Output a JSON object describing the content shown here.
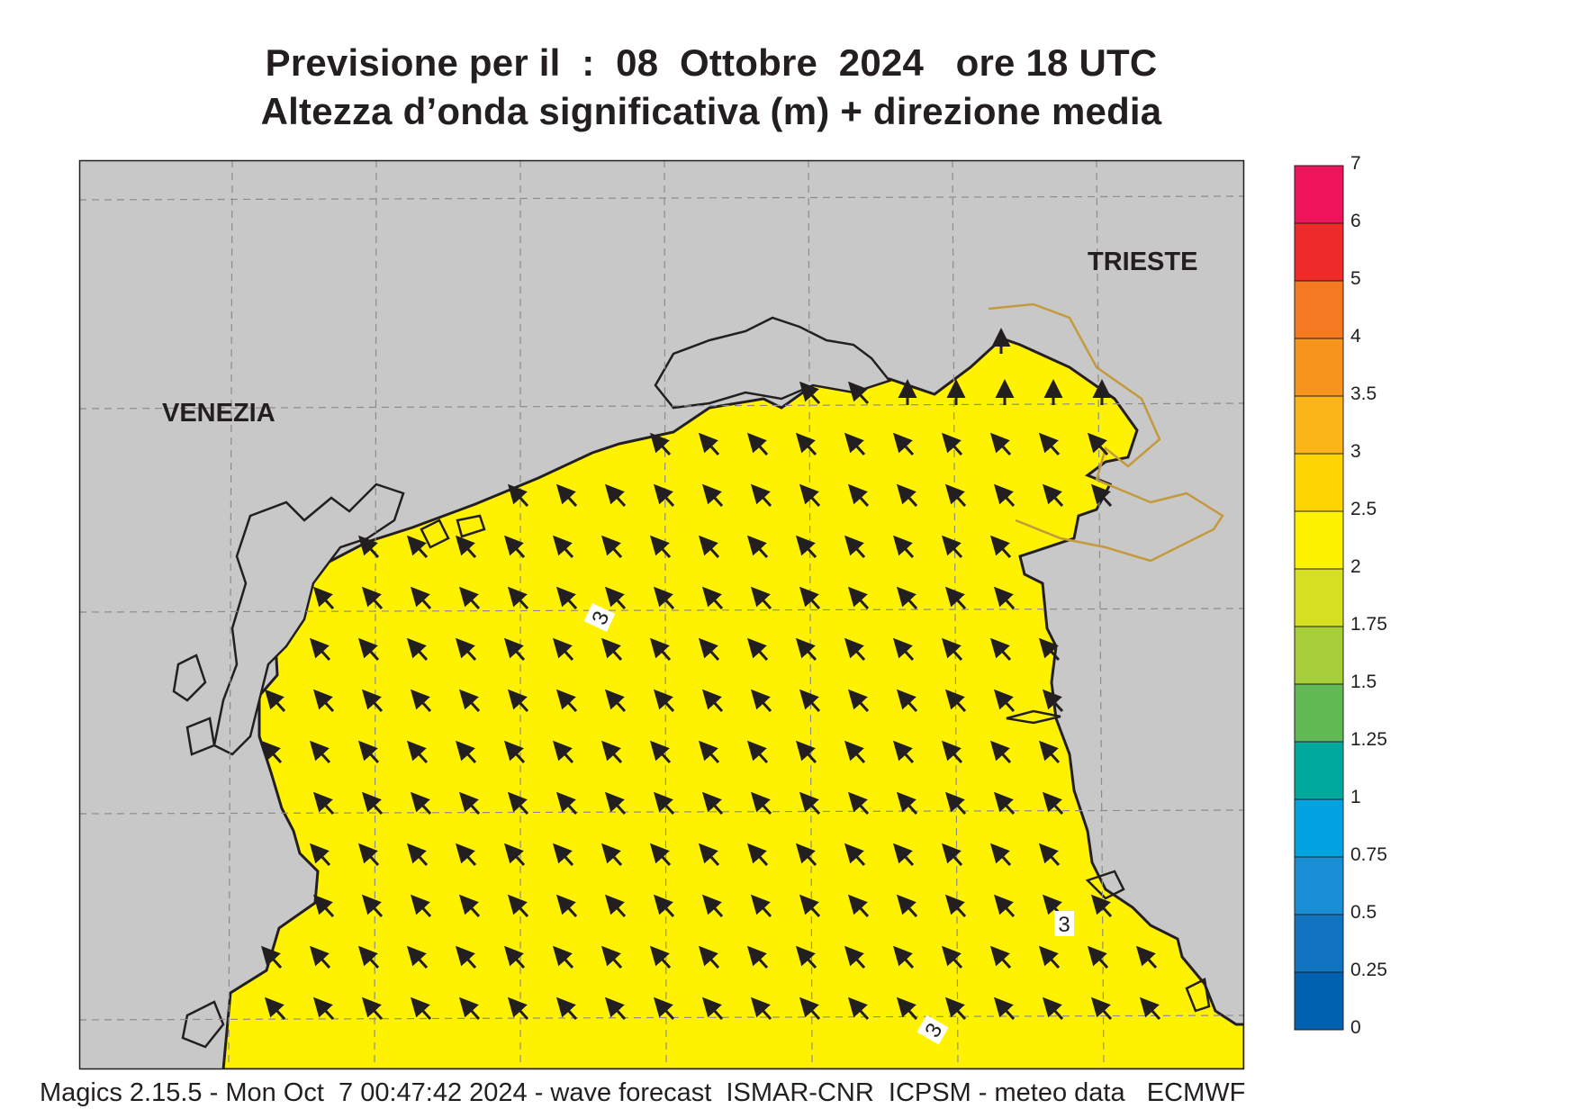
{
  "title": {
    "line1": "Previsione per il  :  08  Ottobre  2024   ore 18 UTC",
    "line2": "Altezza d’onda significativa (m) + direzione media"
  },
  "map": {
    "cities": [
      "VENEZIA",
      "TRIESTE"
    ],
    "contour_labels": [
      "3",
      "3",
      "3"
    ],
    "land_color": "#c8c8c8",
    "arrow_direction": "north-west",
    "colors": {
      "wave_1_75_2": "#d7df23",
      "wave_2_2_5": "#fff200",
      "wave_2_5_3": "#ffd400",
      "wave_3_3_5": "#fbb518",
      "wave_0_5_0_75": "#1689d1",
      "wave_0_75_1": "#00a3e0",
      "wave_1_1_25": "#00a99d",
      "wave_1_25_1_5": "#61b954",
      "wave_1_5_1_75": "#a6ce39"
    }
  },
  "legend": {
    "labels": [
      "7",
      "6",
      "5",
      "4",
      "3.5",
      "3",
      "2.5",
      "2",
      "1.75",
      "1.5",
      "1.25",
      "1",
      "0.75",
      "0.5",
      "0.25",
      "0"
    ],
    "colors": [
      "#ed145b",
      "#ee2a2a",
      "#f47920",
      "#f7941d",
      "#fbb518",
      "#ffd400",
      "#fff200",
      "#d7df23",
      "#a6ce39",
      "#61b954",
      "#00a99d",
      "#00a3e0",
      "#1a8fd6",
      "#1174c0",
      "#0061b0"
    ]
  },
  "footer": "Magics 2.15.5 - Mon Oct  7 00:47:42 2024 - wave forecast  ISMAR-CNR  ICPSM - meteo data   ECMWF"
}
